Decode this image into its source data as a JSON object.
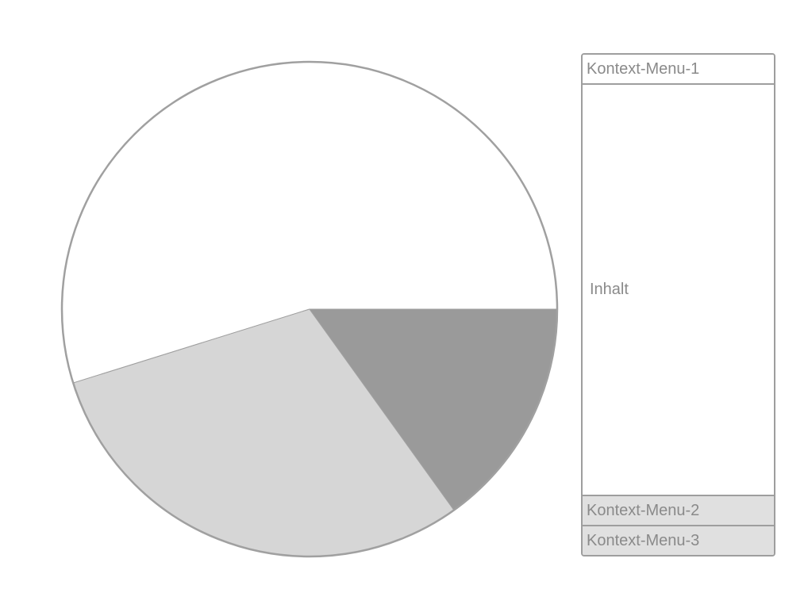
{
  "pie": {
    "segments": [
      {
        "id": "segment-white",
        "share": 0.5482,
        "color": "#ffffff"
      },
      {
        "id": "segment-light-gray",
        "share": 0.3009,
        "color": "#d6d6d6"
      },
      {
        "id": "segment-dark-gray",
        "share": 0.1509,
        "color": "#9a9a9a"
      }
    ],
    "outline_color": "#a0a0a0"
  },
  "panel": {
    "menu1_label": "Kontext-Menu-1",
    "content_label": "Inhalt",
    "menu2_label": "Kontext-Menu-2",
    "menu3_label": "Kontext-Menu-3",
    "border_color": "#9e9e9e",
    "lower_menu_bg": "#e0e0e0",
    "text_color": "#8a8a8a"
  }
}
